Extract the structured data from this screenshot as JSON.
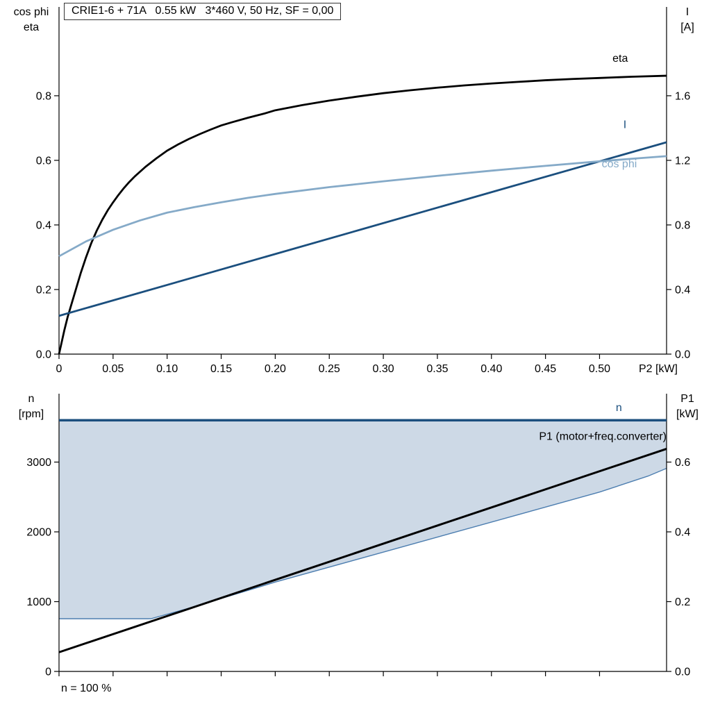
{
  "title_box": "CRIE1-6 + 71A   0.55 kW   3*460 V, 50 Hz, SF = 0,00",
  "footer_note": "n = 100 %",
  "colors": {
    "black": "#000000",
    "dark_blue": "#1b4f7e",
    "light_blue": "#85aac8",
    "region_fill": "#cdd9e6",
    "region_edge": "#4d7eb0",
    "axis": "#000000"
  },
  "chart_data": [
    {
      "type": "line",
      "x_axis": {
        "label": "P2 [kW]",
        "range": [
          0,
          0.562
        ],
        "ticks": [
          0,
          0.05,
          0.1,
          0.15,
          0.2,
          0.25,
          0.3,
          0.35,
          0.4,
          0.45,
          0.5
        ],
        "tick_labels": [
          "0",
          "0.05",
          "0.10",
          "0.15",
          "0.20",
          "0.25",
          "0.30",
          "0.35",
          "0.40",
          "0.45",
          "0.50"
        ]
      },
      "left_axis": {
        "label_lines": [
          "cos phi",
          "eta"
        ],
        "range": [
          0,
          1.075
        ],
        "ticks": [
          0.0,
          0.2,
          0.4,
          0.6,
          0.8
        ],
        "tick_labels": [
          "0.0",
          "0.2",
          "0.4",
          "0.6",
          "0.8"
        ]
      },
      "right_axis": {
        "label_lines": [
          "I",
          "[A]"
        ],
        "range": [
          0,
          2.15
        ],
        "ticks": [
          0.0,
          0.4,
          0.8,
          1.2,
          1.6
        ],
        "tick_labels": [
          "0.0",
          "0.4",
          "0.8",
          "1.2",
          "1.6"
        ]
      },
      "series": [
        {
          "name": "eta",
          "color_key": "black",
          "axis": "left",
          "width": 2.8,
          "points": [
            [
              0,
              0
            ],
            [
              0.002,
              0.03
            ],
            [
              0.005,
              0.075
            ],
            [
              0.008,
              0.115
            ],
            [
              0.012,
              0.16
            ],
            [
              0.016,
              0.205
            ],
            [
              0.02,
              0.25
            ],
            [
              0.025,
              0.3
            ],
            [
              0.03,
              0.345
            ],
            [
              0.035,
              0.383
            ],
            [
              0.04,
              0.416
            ],
            [
              0.045,
              0.445
            ],
            [
              0.05,
              0.47
            ],
            [
              0.055,
              0.493
            ],
            [
              0.06,
              0.514
            ],
            [
              0.065,
              0.533
            ],
            [
              0.07,
              0.55
            ],
            [
              0.08,
              0.58
            ],
            [
              0.09,
              0.606
            ],
            [
              0.1,
              0.63
            ],
            [
              0.11,
              0.649
            ],
            [
              0.12,
              0.666
            ],
            [
              0.13,
              0.681
            ],
            [
              0.14,
              0.695
            ],
            [
              0.15,
              0.708
            ],
            [
              0.16,
              0.718
            ],
            [
              0.175,
              0.732
            ],
            [
              0.19,
              0.745
            ],
            [
              0.2,
              0.755
            ],
            [
              0.225,
              0.771
            ],
            [
              0.25,
              0.785
            ],
            [
              0.275,
              0.797
            ],
            [
              0.3,
              0.808
            ],
            [
              0.325,
              0.817
            ],
            [
              0.35,
              0.825
            ],
            [
              0.375,
              0.832
            ],
            [
              0.4,
              0.838
            ],
            [
              0.425,
              0.843
            ],
            [
              0.45,
              0.848
            ],
            [
              0.475,
              0.852
            ],
            [
              0.5,
              0.855
            ],
            [
              0.53,
              0.859
            ],
            [
              0.562,
              0.862
            ]
          ]
        },
        {
          "name": "I",
          "color_key": "dark_blue",
          "axis": "right",
          "width": 2.8,
          "points": [
            [
              0,
              0.237
            ],
            [
              0.14,
              0.505
            ],
            [
              0.28,
              0.773
            ],
            [
              0.42,
              1.041
            ],
            [
              0.562,
              1.312
            ]
          ]
        },
        {
          "name": "cos phi",
          "color_key": "light_blue",
          "axis": "left",
          "width": 2.8,
          "points": [
            [
              0,
              0.303
            ],
            [
              0.025,
              0.349
            ],
            [
              0.05,
              0.385
            ],
            [
              0.075,
              0.414
            ],
            [
              0.1,
              0.438
            ],
            [
              0.125,
              0.455
            ],
            [
              0.15,
              0.47
            ],
            [
              0.175,
              0.484
            ],
            [
              0.2,
              0.496
            ],
            [
              0.25,
              0.517
            ],
            [
              0.3,
              0.535
            ],
            [
              0.35,
              0.552
            ],
            [
              0.4,
              0.568
            ],
            [
              0.45,
              0.583
            ],
            [
              0.5,
              0.597
            ],
            [
              0.53,
              0.605
            ],
            [
              0.562,
              0.613
            ]
          ]
        }
      ],
      "annotations": [
        {
          "text": "eta",
          "color_key": "black",
          "axis": "left",
          "x": 0.512,
          "y": 0.905,
          "anchor": "start"
        },
        {
          "text": "I",
          "color_key": "dark_blue",
          "axis": "left",
          "x": 0.522,
          "y": 0.7,
          "anchor": "start"
        },
        {
          "text": "cos phi",
          "color_key": "light_blue",
          "axis": "left",
          "x": 0.502,
          "y": 0.578,
          "anchor": "start"
        }
      ]
    },
    {
      "type": "line",
      "x_axis": {
        "label": "",
        "range": [
          0,
          0.562
        ],
        "ticks": [
          0,
          0.05,
          0.1,
          0.15,
          0.2,
          0.25,
          0.3,
          0.35,
          0.4,
          0.45,
          0.5
        ],
        "tick_labels": []
      },
      "left_axis": {
        "label_lines": [
          "n",
          "[rpm]"
        ],
        "range": [
          0,
          3980
        ],
        "ticks": [
          0,
          1000,
          2000,
          3000
        ],
        "tick_labels": [
          "0",
          "1000",
          "2000",
          "3000"
        ]
      },
      "right_axis": {
        "label_lines": [
          "P1",
          "[kW]"
        ],
        "range": [
          0,
          0.796
        ],
        "ticks": [
          0.0,
          0.2,
          0.4,
          0.6
        ],
        "tick_labels": [
          "0.0",
          "0.2",
          "0.4",
          "0.6"
        ]
      },
      "region": {
        "name": "speed-operating-range",
        "upper": [
          [
            0,
            3600
          ],
          [
            0.562,
            3600
          ]
        ],
        "lower": [
          [
            0,
            755
          ],
          [
            0.085,
            755
          ],
          [
            0.12,
            905
          ],
          [
            0.2,
            1280
          ],
          [
            0.3,
            1710
          ],
          [
            0.4,
            2140
          ],
          [
            0.5,
            2570
          ],
          [
            0.545,
            2800
          ],
          [
            0.562,
            2910
          ]
        ]
      },
      "series": [
        {
          "name": "n",
          "color_key": "dark_blue",
          "axis": "left",
          "width": 3.5,
          "points": [
            [
              0,
              3600
            ],
            [
              0.562,
              3600
            ]
          ]
        },
        {
          "name": "P1 (motor+freq.converter)",
          "color_key": "black",
          "axis": "right",
          "width": 3,
          "points": [
            [
              0,
              0.055
            ],
            [
              0.562,
              0.638
            ]
          ]
        }
      ],
      "annotations": [
        {
          "text": "n",
          "color_key": "dark_blue",
          "axis": "left",
          "x": 0.515,
          "y": 3730,
          "anchor": "start"
        },
        {
          "text": "P1 (motor+freq.converter)",
          "color_key": "black",
          "axis": "right",
          "x": 0.562,
          "y": 0.664,
          "anchor": "end"
        }
      ]
    }
  ]
}
